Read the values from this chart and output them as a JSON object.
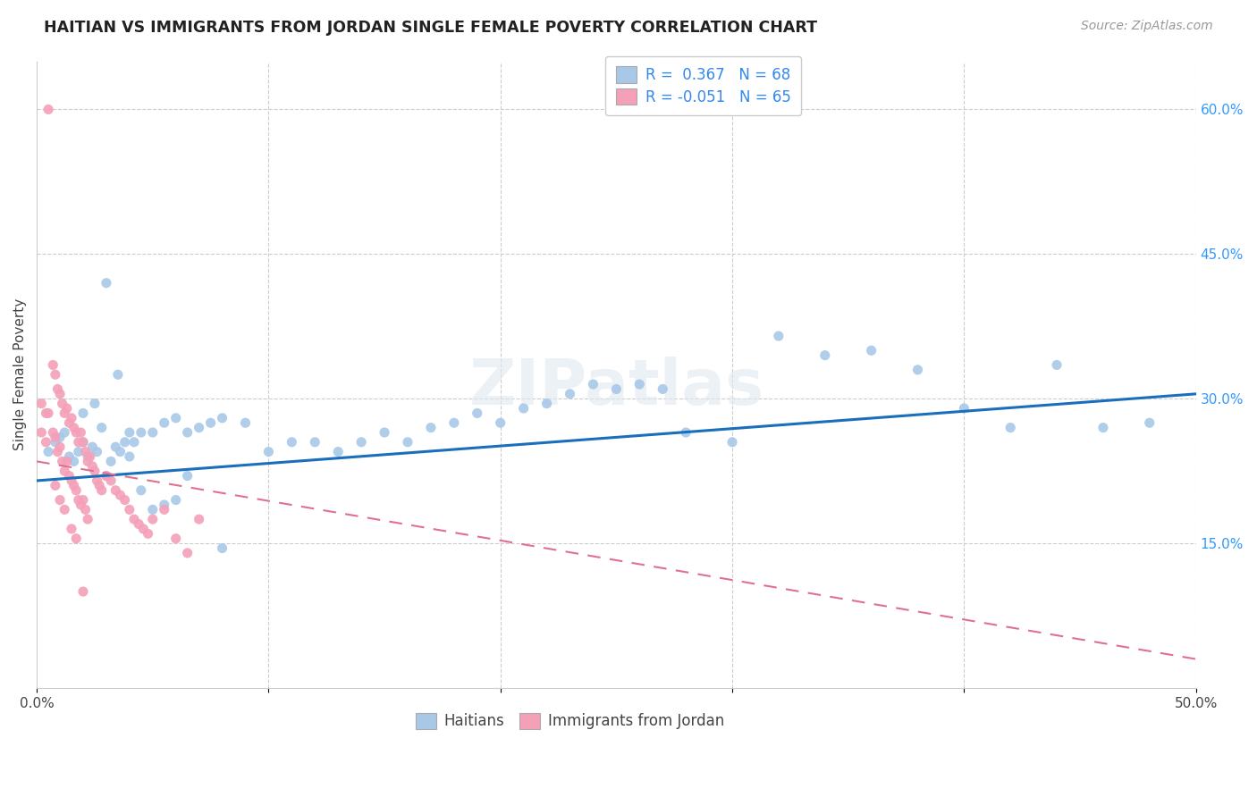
{
  "title": "HAITIAN VS IMMIGRANTS FROM JORDAN SINGLE FEMALE POVERTY CORRELATION CHART",
  "source": "Source: ZipAtlas.com",
  "ylabel": "Single Female Poverty",
  "xlim": [
    0.0,
    0.5
  ],
  "ylim": [
    0.0,
    0.65
  ],
  "xticks": [
    0.0,
    0.1,
    0.2,
    0.3,
    0.4,
    0.5
  ],
  "xticklabels": [
    "0.0%",
    "",
    "",
    "",
    "",
    "50.0%"
  ],
  "yticks_right": [
    0.15,
    0.3,
    0.45,
    0.6
  ],
  "ytick_labels_right": [
    "15.0%",
    "30.0%",
    "45.0%",
    "60.0%"
  ],
  "haitian_color": "#a8c8e8",
  "jordan_color": "#f4a0b8",
  "haitian_line_color": "#1a6fbd",
  "jordan_line_color": "#e07090",
  "watermark": "ZIPatlas",
  "legend_label_color": "#3388ee",
  "haitian_x": [
    0.005,
    0.008,
    0.01,
    0.012,
    0.014,
    0.016,
    0.018,
    0.02,
    0.022,
    0.024,
    0.026,
    0.028,
    0.03,
    0.032,
    0.034,
    0.036,
    0.038,
    0.04,
    0.042,
    0.045,
    0.05,
    0.055,
    0.06,
    0.065,
    0.07,
    0.075,
    0.08,
    0.09,
    0.1,
    0.11,
    0.12,
    0.13,
    0.14,
    0.15,
    0.16,
    0.17,
    0.18,
    0.19,
    0.2,
    0.21,
    0.22,
    0.23,
    0.24,
    0.25,
    0.26,
    0.27,
    0.28,
    0.3,
    0.32,
    0.34,
    0.36,
    0.38,
    0.4,
    0.42,
    0.44,
    0.46,
    0.48,
    0.02,
    0.025,
    0.03,
    0.035,
    0.04,
    0.045,
    0.05,
    0.055,
    0.06,
    0.065,
    0.08
  ],
  "haitian_y": [
    0.245,
    0.255,
    0.26,
    0.265,
    0.24,
    0.235,
    0.245,
    0.255,
    0.24,
    0.25,
    0.245,
    0.27,
    0.22,
    0.235,
    0.25,
    0.245,
    0.255,
    0.24,
    0.255,
    0.265,
    0.265,
    0.275,
    0.28,
    0.265,
    0.27,
    0.275,
    0.28,
    0.275,
    0.245,
    0.255,
    0.255,
    0.245,
    0.255,
    0.265,
    0.255,
    0.27,
    0.275,
    0.285,
    0.275,
    0.29,
    0.295,
    0.305,
    0.315,
    0.31,
    0.315,
    0.31,
    0.265,
    0.255,
    0.365,
    0.345,
    0.35,
    0.33,
    0.29,
    0.27,
    0.335,
    0.27,
    0.275,
    0.285,
    0.295,
    0.42,
    0.325,
    0.265,
    0.205,
    0.185,
    0.19,
    0.195,
    0.22,
    0.145
  ],
  "jordan_x": [
    0.002,
    0.004,
    0.005,
    0.007,
    0.008,
    0.009,
    0.01,
    0.011,
    0.012,
    0.013,
    0.014,
    0.015,
    0.016,
    0.017,
    0.018,
    0.019,
    0.02,
    0.021,
    0.022,
    0.023,
    0.024,
    0.025,
    0.026,
    0.027,
    0.028,
    0.03,
    0.032,
    0.034,
    0.036,
    0.038,
    0.04,
    0.042,
    0.044,
    0.046,
    0.048,
    0.05,
    0.055,
    0.06,
    0.065,
    0.07,
    0.002,
    0.004,
    0.005,
    0.007,
    0.008,
    0.009,
    0.01,
    0.011,
    0.012,
    0.013,
    0.014,
    0.015,
    0.016,
    0.017,
    0.018,
    0.019,
    0.02,
    0.021,
    0.022,
    0.008,
    0.01,
    0.012,
    0.015,
    0.017,
    0.02
  ],
  "jordan_y": [
    0.295,
    0.285,
    0.6,
    0.335,
    0.325,
    0.31,
    0.305,
    0.295,
    0.285,
    0.29,
    0.275,
    0.28,
    0.27,
    0.265,
    0.255,
    0.265,
    0.255,
    0.245,
    0.235,
    0.24,
    0.23,
    0.225,
    0.215,
    0.21,
    0.205,
    0.22,
    0.215,
    0.205,
    0.2,
    0.195,
    0.185,
    0.175,
    0.17,
    0.165,
    0.16,
    0.175,
    0.185,
    0.155,
    0.14,
    0.175,
    0.265,
    0.255,
    0.285,
    0.265,
    0.26,
    0.245,
    0.25,
    0.235,
    0.225,
    0.235,
    0.22,
    0.215,
    0.21,
    0.205,
    0.195,
    0.19,
    0.195,
    0.185,
    0.175,
    0.21,
    0.195,
    0.185,
    0.165,
    0.155,
    0.1
  ],
  "haitian_line_x": [
    0.0,
    0.5
  ],
  "haitian_line_y": [
    0.215,
    0.305
  ],
  "jordan_line_x": [
    0.0,
    0.5
  ],
  "jordan_line_y": [
    0.235,
    0.03
  ]
}
